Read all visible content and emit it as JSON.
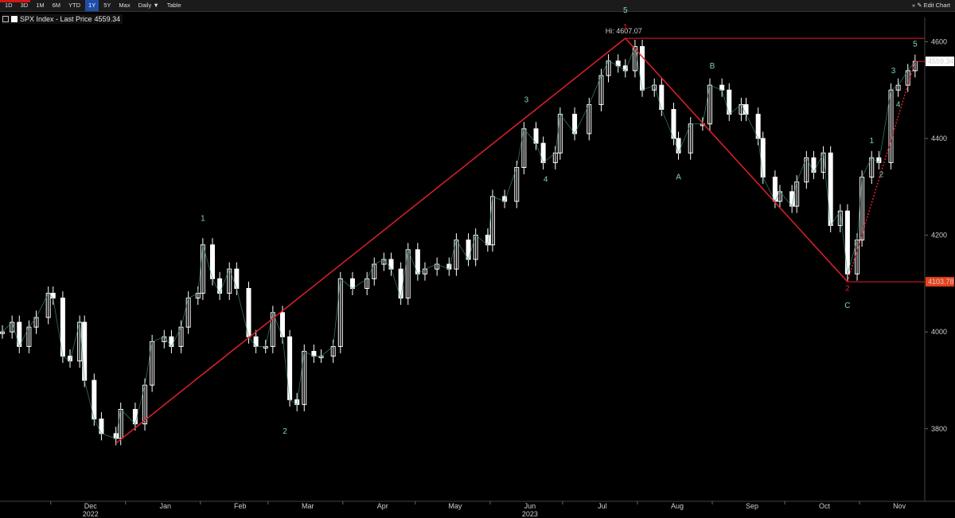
{
  "toolbar": {
    "ranges": [
      "1D",
      "3D",
      "1M",
      "6M",
      "YTD",
      "1Y",
      "5Y",
      "Max"
    ],
    "active_range": "1Y",
    "interval": "Daily ▼",
    "table": "Table",
    "edit_chart": "« ✎ Edit Chart"
  },
  "legend": {
    "label": "SPX Index - Last Price",
    "value": "4559.34"
  },
  "colors": {
    "background": "#000000",
    "trend": "#e0202a",
    "wave_label": "#7fd3b0",
    "up_candle": "#ffffff",
    "down_candle": "#ffffff",
    "last_price_tag": "#ffffff",
    "low_tag": "#e8401a"
  },
  "chart_data": {
    "type": "line",
    "title": "",
    "xlabel": "",
    "ylabel": "",
    "ylim": [
      3650,
      4650
    ],
    "y_ticks": [
      3800,
      4000,
      4200,
      4400,
      4600
    ],
    "x_ticks": [
      {
        "label": "Dec",
        "year": "2022",
        "x": "2022-12-01"
      },
      {
        "label": "Jan",
        "year": "",
        "x": "2023-01-01"
      },
      {
        "label": "Feb",
        "year": "",
        "x": "2023-02-01"
      },
      {
        "label": "Mar",
        "year": "",
        "x": "2023-03-01"
      },
      {
        "label": "Apr",
        "year": "",
        "x": "2023-04-01"
      },
      {
        "label": "May",
        "year": "",
        "x": "2023-05-01"
      },
      {
        "label": "Jun",
        "year": "2023",
        "x": "2023-06-01"
      },
      {
        "label": "Jul",
        "year": "",
        "x": "2023-07-01"
      },
      {
        "label": "Aug",
        "year": "",
        "x": "2023-08-01"
      },
      {
        "label": "Sep",
        "year": "",
        "x": "2023-09-01"
      },
      {
        "label": "Oct",
        "year": "",
        "x": "2023-10-01"
      },
      {
        "label": "Nov",
        "year": "",
        "x": "2023-11-01"
      }
    ],
    "x_range": [
      "2022-11-10",
      "2023-11-28"
    ],
    "close_series": [
      [
        "2022-11-11",
        4000
      ],
      [
        "2022-11-15",
        4020
      ],
      [
        "2022-11-18",
        3970
      ],
      [
        "2022-11-22",
        4010
      ],
      [
        "2022-11-25",
        4030
      ],
      [
        "2022-11-30",
        4080
      ],
      [
        "2022-12-02",
        4070
      ],
      [
        "2022-12-06",
        3950
      ],
      [
        "2022-12-09",
        3940
      ],
      [
        "2022-12-13",
        4020
      ],
      [
        "2022-12-15",
        3900
      ],
      [
        "2022-12-19",
        3820
      ],
      [
        "2022-12-22",
        3790
      ],
      [
        "2022-12-28",
        3780
      ],
      [
        "2022-12-30",
        3840
      ],
      [
        "2023-01-05",
        3810
      ],
      [
        "2023-01-09",
        3890
      ],
      [
        "2023-01-12",
        3980
      ],
      [
        "2023-01-17",
        3990
      ],
      [
        "2023-01-20",
        3970
      ],
      [
        "2023-01-24",
        4010
      ],
      [
        "2023-01-27",
        4070
      ],
      [
        "2023-01-31",
        4080
      ],
      [
        "2023-02-02",
        4180
      ],
      [
        "2023-02-06",
        4110
      ],
      [
        "2023-02-09",
        4080
      ],
      [
        "2023-02-13",
        4130
      ],
      [
        "2023-02-16",
        4090
      ],
      [
        "2023-02-21",
        3990
      ],
      [
        "2023-02-24",
        3970
      ],
      [
        "2023-02-28",
        3970
      ],
      [
        "2023-03-03",
        4040
      ],
      [
        "2023-03-07",
        3990
      ],
      [
        "2023-03-10",
        3860
      ],
      [
        "2023-03-13",
        3850
      ],
      [
        "2023-03-16",
        3960
      ],
      [
        "2023-03-20",
        3950
      ],
      [
        "2023-03-23",
        3950
      ],
      [
        "2023-03-28",
        3970
      ],
      [
        "2023-03-31",
        4110
      ],
      [
        "2023-04-05",
        4090
      ],
      [
        "2023-04-11",
        4110
      ],
      [
        "2023-04-14",
        4140
      ],
      [
        "2023-04-18",
        4150
      ],
      [
        "2023-04-21",
        4130
      ],
      [
        "2023-04-25",
        4070
      ],
      [
        "2023-04-28",
        4170
      ],
      [
        "2023-05-02",
        4120
      ],
      [
        "2023-05-05",
        4130
      ],
      [
        "2023-05-10",
        4140
      ],
      [
        "2023-05-15",
        4130
      ],
      [
        "2023-05-18",
        4190
      ],
      [
        "2023-05-23",
        4150
      ],
      [
        "2023-05-26",
        4200
      ],
      [
        "2023-05-31",
        4180
      ],
      [
        "2023-06-02",
        4280
      ],
      [
        "2023-06-07",
        4270
      ],
      [
        "2023-06-12",
        4340
      ],
      [
        "2023-06-15",
        4420
      ],
      [
        "2023-06-20",
        4390
      ],
      [
        "2023-06-23",
        4350
      ],
      [
        "2023-06-28",
        4370
      ],
      [
        "2023-06-30",
        4450
      ],
      [
        "2023-07-06",
        4410
      ],
      [
        "2023-07-12",
        4470
      ],
      [
        "2023-07-17",
        4530
      ],
      [
        "2023-07-20",
        4560
      ],
      [
        "2023-07-24",
        4550
      ],
      [
        "2023-07-27",
        4540
      ],
      [
        "2023-07-31",
        4590
      ],
      [
        "2023-08-03",
        4500
      ],
      [
        "2023-08-08",
        4510
      ],
      [
        "2023-08-11",
        4460
      ],
      [
        "2023-08-16",
        4400
      ],
      [
        "2023-08-18",
        4370
      ],
      [
        "2023-08-23",
        4430
      ],
      [
        "2023-08-28",
        4430
      ],
      [
        "2023-08-31",
        4510
      ],
      [
        "2023-09-05",
        4500
      ],
      [
        "2023-09-08",
        4450
      ],
      [
        "2023-09-13",
        4470
      ],
      [
        "2023-09-15",
        4450
      ],
      [
        "2023-09-20",
        4400
      ],
      [
        "2023-09-22",
        4320
      ],
      [
        "2023-09-27",
        4270
      ],
      [
        "2023-09-29",
        4290
      ],
      [
        "2023-10-04",
        4260
      ],
      [
        "2023-10-06",
        4310
      ],
      [
        "2023-10-10",
        4360
      ],
      [
        "2023-10-13",
        4330
      ],
      [
        "2023-10-17",
        4370
      ],
      [
        "2023-10-20",
        4220
      ],
      [
        "2023-10-24",
        4250
      ],
      [
        "2023-10-27",
        4120
      ],
      [
        "2023-10-31",
        4190
      ],
      [
        "2023-11-02",
        4320
      ],
      [
        "2023-11-06",
        4360
      ],
      [
        "2023-11-09",
        4350
      ],
      [
        "2023-11-14",
        4500
      ],
      [
        "2023-11-17",
        4510
      ],
      [
        "2023-11-21",
        4540
      ],
      [
        "2023-11-24",
        4559.34
      ]
    ],
    "trend_lines": [
      {
        "name": "support",
        "points": [
          [
            "2022-12-28",
            3770
          ],
          [
            "2023-07-27",
            4607.07
          ]
        ]
      },
      {
        "name": "decline",
        "points": [
          [
            "2023-07-27",
            4607.07
          ],
          [
            "2023-10-27",
            4103.78
          ]
        ]
      },
      {
        "name": "rise",
        "points": [
          [
            "2023-10-27",
            4103.78
          ],
          [
            "2023-11-24",
            4559.34
          ]
        ],
        "dotted": true
      }
    ],
    "hlines": [
      {
        "y": 4607.07,
        "from": "2023-07-27",
        "label": "Hi: 4607.07"
      },
      {
        "y": 4103.78,
        "from": "2023-10-27",
        "label": "4103.78"
      },
      {
        "y": 4559.34,
        "from": "2023-11-24",
        "label": "4559.34"
      }
    ],
    "wave_labels": [
      {
        "text": "1",
        "x": "2023-02-02",
        "y": 4230,
        "color": "green"
      },
      {
        "text": "2",
        "x": "2023-03-08",
        "y": 3790,
        "color": "green"
      },
      {
        "text": "3",
        "x": "2023-06-16",
        "y": 4475,
        "color": "green"
      },
      {
        "text": "4",
        "x": "2023-06-24",
        "y": 4310,
        "color": "green"
      },
      {
        "text": "5",
        "x": "2023-07-27",
        "y": 4660,
        "color": "green"
      },
      {
        "text": "1",
        "x": "2023-07-27",
        "y": 4625,
        "color": "red"
      },
      {
        "text": "A",
        "x": "2023-08-18",
        "y": 4315,
        "color": "green"
      },
      {
        "text": "B",
        "x": "2023-09-01",
        "y": 4545,
        "color": "green"
      },
      {
        "text": "C",
        "x": "2023-10-27",
        "y": 4050,
        "color": "green"
      },
      {
        "text": "2",
        "x": "2023-10-27",
        "y": 4085,
        "color": "red"
      },
      {
        "text": "1",
        "x": "2023-11-06",
        "y": 4390,
        "color": "green"
      },
      {
        "text": "2",
        "x": "2023-11-10",
        "y": 4320,
        "color": "green"
      },
      {
        "text": "3",
        "x": "2023-11-15",
        "y": 4535,
        "color": "green"
      },
      {
        "text": "4",
        "x": "2023-11-17",
        "y": 4465,
        "color": "green"
      },
      {
        "text": "5",
        "x": "2023-11-24",
        "y": 4590,
        "color": "green"
      }
    ]
  }
}
